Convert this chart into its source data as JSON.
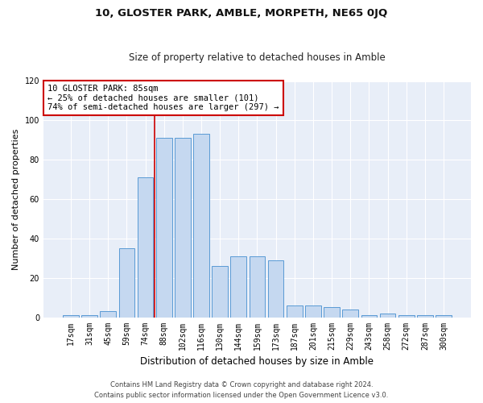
{
  "title": "10, GLOSTER PARK, AMBLE, MORPETH, NE65 0JQ",
  "subtitle": "Size of property relative to detached houses in Amble",
  "xlabel": "Distribution of detached houses by size in Amble",
  "ylabel": "Number of detached properties",
  "bins": [
    "17sqm",
    "31sqm",
    "45sqm",
    "59sqm",
    "74sqm",
    "88sqm",
    "102sqm",
    "116sqm",
    "130sqm",
    "144sqm",
    "159sqm",
    "173sqm",
    "187sqm",
    "201sqm",
    "215sqm",
    "229sqm",
    "243sqm",
    "258sqm",
    "272sqm",
    "287sqm",
    "300sqm"
  ],
  "values": [
    1,
    1,
    3,
    35,
    71,
    91,
    91,
    93,
    26,
    31,
    31,
    29,
    6,
    6,
    5,
    4,
    1,
    2,
    1,
    1,
    1
  ],
  "bar_color": "#c5d8f0",
  "bar_edge_color": "#5a9ad5",
  "line_color": "#cc0000",
  "line_bin_index": 4.5,
  "annotation_line1": "10 GLOSTER PARK: 85sqm",
  "annotation_line2": "← 25% of detached houses are smaller (101)",
  "annotation_line3": "74% of semi-detached houses are larger (297) →",
  "annotation_box_color": "#ffffff",
  "annotation_box_edge_color": "#cc0000",
  "ylim": [
    0,
    120
  ],
  "yticks": [
    0,
    20,
    40,
    60,
    80,
    100,
    120
  ],
  "bg_color": "#e8eef8",
  "grid_color": "#ffffff",
  "footer1": "Contains HM Land Registry data © Crown copyright and database right 2024.",
  "footer2": "Contains public sector information licensed under the Open Government Licence v3.0.",
  "title_fontsize": 9.5,
  "subtitle_fontsize": 8.5,
  "ylabel_fontsize": 8,
  "xlabel_fontsize": 8.5,
  "tick_fontsize": 7,
  "annotation_fontsize": 7.5,
  "footer_fontsize": 6
}
